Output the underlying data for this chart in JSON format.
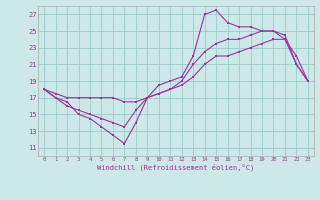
{
  "xlabel": "Windchill (Refroidissement éolien,°C)",
  "background_color": "#cce8e8",
  "grid_color": "#99cccc",
  "line_color": "#993399",
  "xlim": [
    -0.5,
    23.5
  ],
  "ylim": [
    10,
    28
  ],
  "xticks": [
    0,
    1,
    2,
    3,
    4,
    5,
    6,
    7,
    8,
    9,
    10,
    11,
    12,
    13,
    14,
    15,
    16,
    17,
    18,
    19,
    20,
    21,
    22,
    23
  ],
  "yticks": [
    11,
    13,
    15,
    17,
    19,
    21,
    23,
    25,
    27
  ],
  "series1_x": [
    0,
    1,
    2,
    3,
    4,
    5,
    6,
    7,
    8,
    9,
    10,
    11,
    12,
    13,
    14,
    15,
    16,
    17,
    18,
    19,
    20,
    21,
    22,
    23
  ],
  "series1_y": [
    18,
    17,
    16.5,
    15,
    14.5,
    13.5,
    12.5,
    11.5,
    14,
    17,
    18.5,
    19,
    19.5,
    22,
    27,
    27.5,
    26,
    25.5,
    25.5,
    25,
    25,
    24,
    21,
    19
  ],
  "series2_x": [
    0,
    1,
    2,
    3,
    4,
    5,
    6,
    7,
    8,
    9,
    10,
    11,
    12,
    13,
    14,
    15,
    16,
    17,
    18,
    19,
    20,
    21,
    22,
    23
  ],
  "series2_y": [
    18,
    17.5,
    17,
    17,
    17,
    17,
    17,
    16.5,
    16.5,
    17,
    17.5,
    18,
    18.5,
    19.5,
    21,
    22,
    22,
    22.5,
    23,
    23.5,
    24,
    24,
    22,
    19
  ],
  "series3_x": [
    0,
    1,
    2,
    3,
    4,
    5,
    6,
    7,
    8,
    9,
    10,
    11,
    12,
    13,
    14,
    15,
    16,
    17,
    18,
    19,
    20,
    21,
    22,
    23
  ],
  "series3_y": [
    18,
    17,
    16,
    15.5,
    15,
    14.5,
    14,
    13.5,
    15.5,
    17,
    17.5,
    18,
    19,
    21,
    22.5,
    23.5,
    24,
    24,
    24.5,
    25,
    25,
    24.5,
    21,
    19
  ]
}
